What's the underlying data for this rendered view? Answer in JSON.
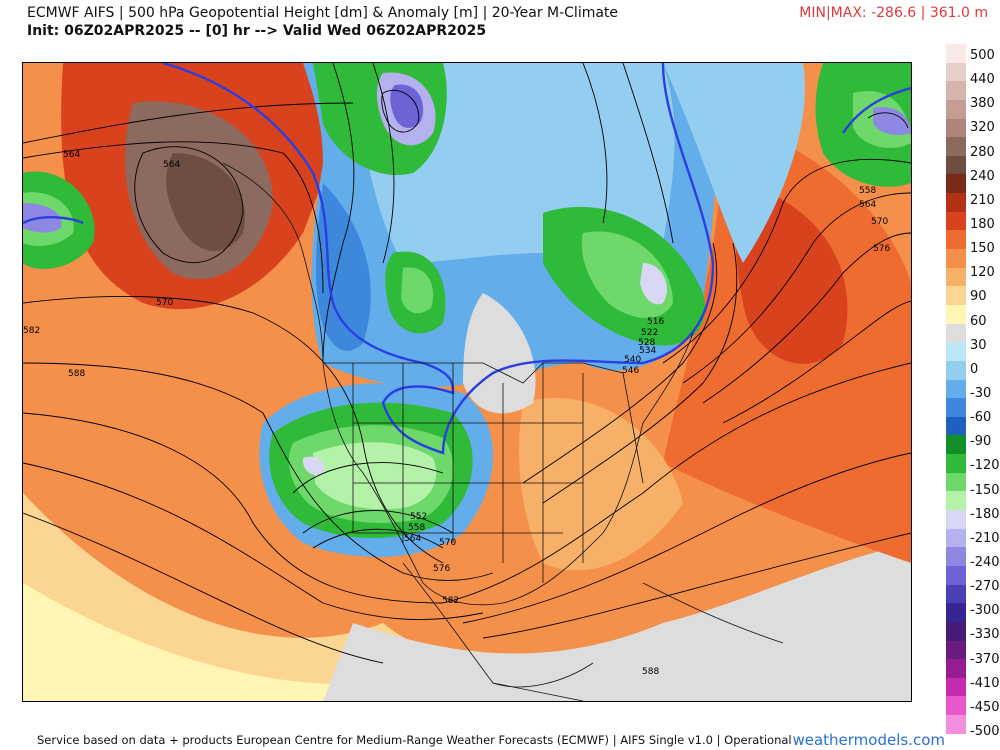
{
  "header": {
    "title": "ECMWF AIFS | 500 hPa Geopotential Height [dm] & Anomaly [m] | 20-Year M-Climate",
    "init": "Init: 06Z02APR2025 -- [0] hr --> Valid Wed 06Z02APR2025",
    "minmax": "MIN|MAX: -286.6 | 361.0 m"
  },
  "colorbar": {
    "ticks": [
      "500",
      "440",
      "380",
      "320",
      "280",
      "240",
      "210",
      "180",
      "150",
      "120",
      "90",
      "60",
      "30",
      "0",
      "-30",
      "-60",
      "-90",
      "-120",
      "-150",
      "-180",
      "-210",
      "-240",
      "-270",
      "-300",
      "-330",
      "-370",
      "-410",
      "-450",
      "-500"
    ],
    "colors": [
      "#f8e8e8",
      "#e6cfc9",
      "#d6b5ae",
      "#c39d94",
      "#ad857a",
      "#8c6a5f",
      "#6e4d43",
      "#7a2a16",
      "#b23216",
      "#d8431e",
      "#ee6c2f",
      "#f5904a",
      "#f7b067",
      "#fbd592",
      "#fff6b3",
      "#dddddd",
      "#bfe6f5",
      "#93cdf0",
      "#63adea",
      "#3d88dd",
      "#1e5fbf",
      "#138f2a",
      "#2fba3a",
      "#6fd86a",
      "#b5f2a9",
      "#d8d8f5",
      "#b4b1ee",
      "#8e88e3",
      "#6b63d6",
      "#4a40b6",
      "#352694",
      "#461a78",
      "#6b1b7e",
      "#951d91",
      "#c42bb1",
      "#e657c9",
      "#f38ee0"
    ]
  },
  "contour_labels": [
    "564",
    "564",
    "570",
    "588",
    "552",
    "558",
    "564",
    "570",
    "576",
    "582",
    "588",
    "516",
    "522",
    "528",
    "534",
    "540",
    "546",
    "558",
    "564",
    "570",
    "576",
    "582"
  ],
  "footer": "Service based on data + products European Centre for Medium-Range Weather Forecasts (ECMWF) | AIFS Single v1.0 | Operational",
  "site": "weathermodels.com"
}
